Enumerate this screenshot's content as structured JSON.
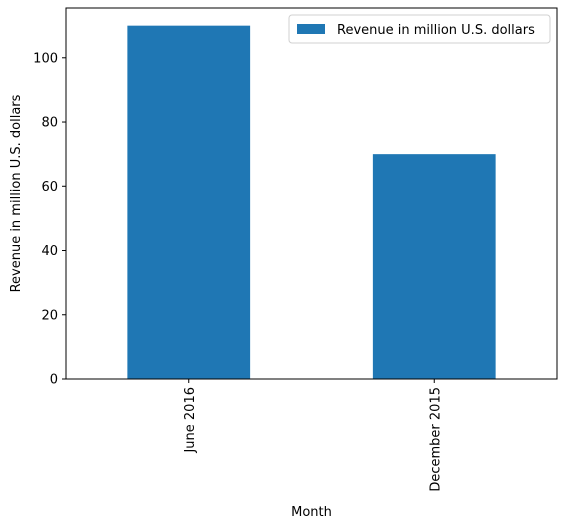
{
  "chart_data": {
    "type": "bar",
    "categories": [
      "June 2016",
      "December 2015"
    ],
    "series": [
      {
        "name": "Revenue in million U.S. dollars",
        "values": [
          110,
          70
        ],
        "color": "#1f77b4"
      }
    ],
    "xlabel": "Month",
    "ylabel": "Revenue in million U.S. dollars",
    "ylim": [
      0,
      115.5
    ],
    "yticks": [
      0,
      20,
      40,
      60,
      80,
      100
    ],
    "legend_position": "top-right",
    "grid": false
  }
}
